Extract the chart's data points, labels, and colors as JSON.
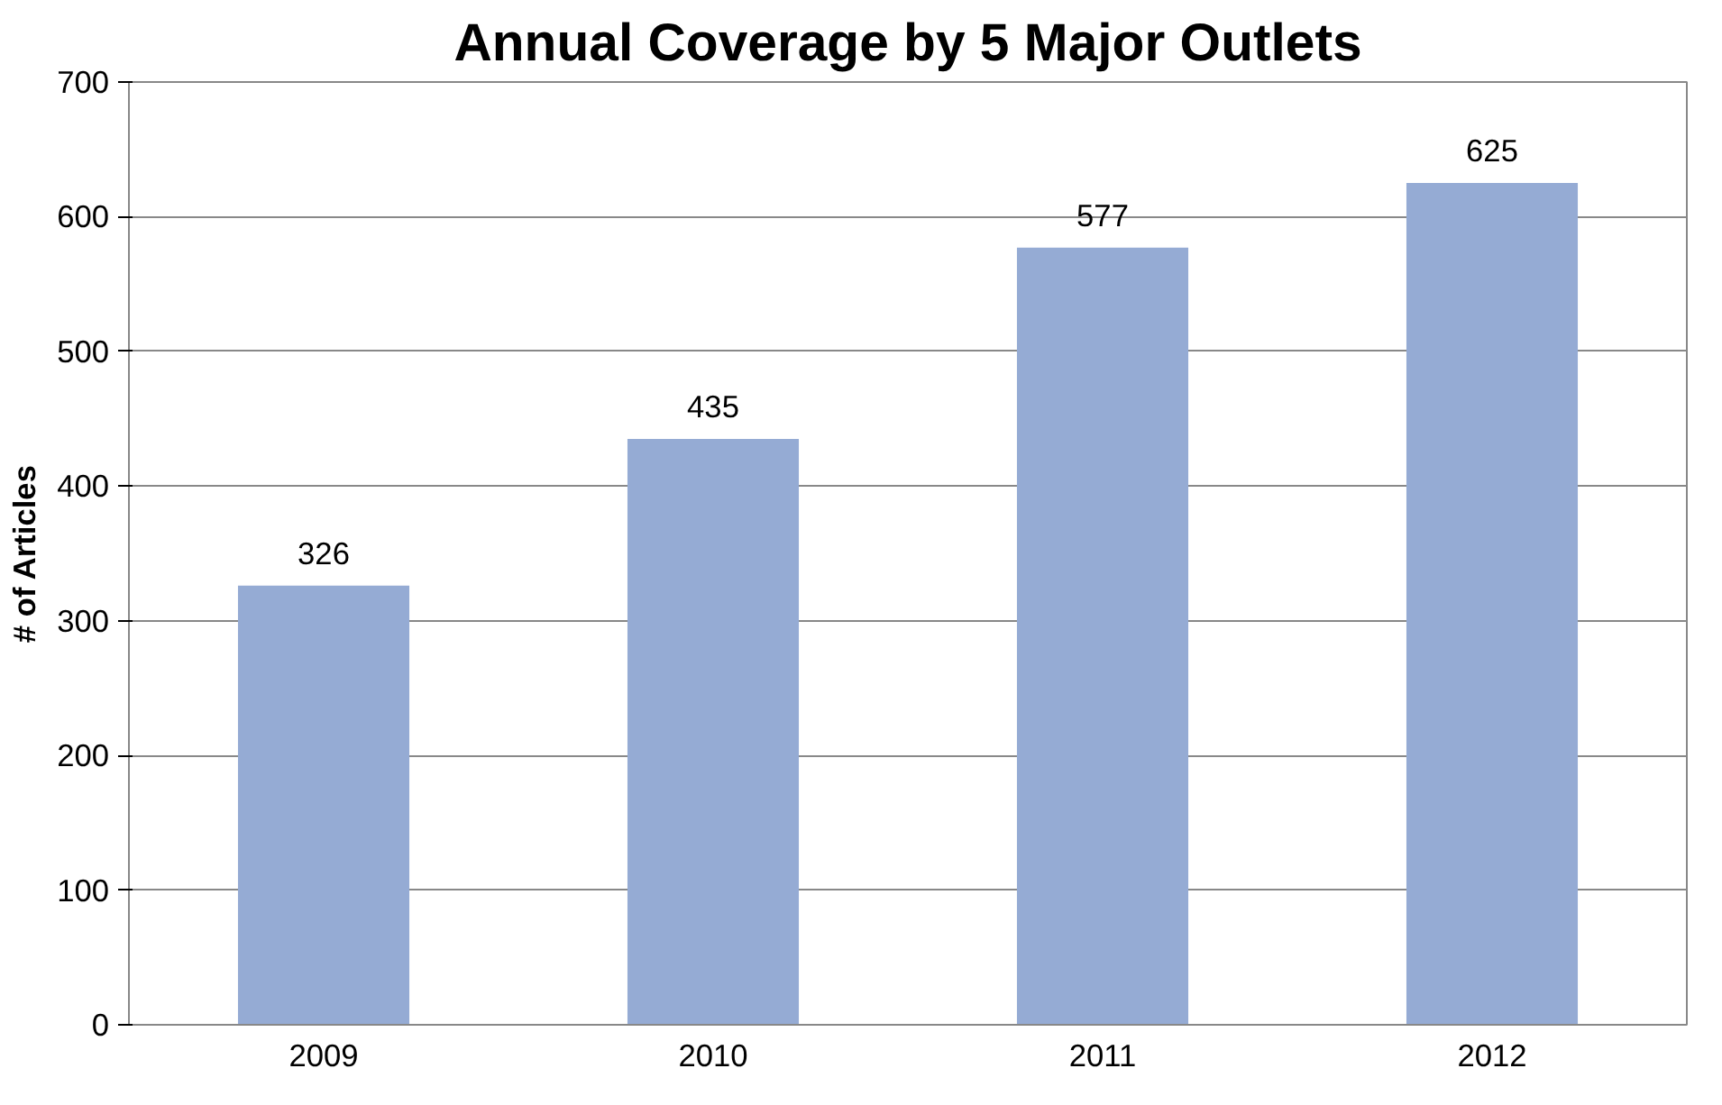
{
  "chart_data": {
    "type": "bar",
    "title": "Annual Coverage by 5 Major Outlets",
    "ylabel": "# of Articles",
    "categories": [
      "2009",
      "2010",
      "2011",
      "2012"
    ],
    "values": [
      326,
      435,
      577,
      625
    ],
    "color": "#95abd4",
    "ylim": [
      0,
      700
    ],
    "yticks": [
      0,
      100,
      200,
      300,
      400,
      500,
      600,
      700
    ],
    "grid": "y",
    "data_labels": true
  }
}
